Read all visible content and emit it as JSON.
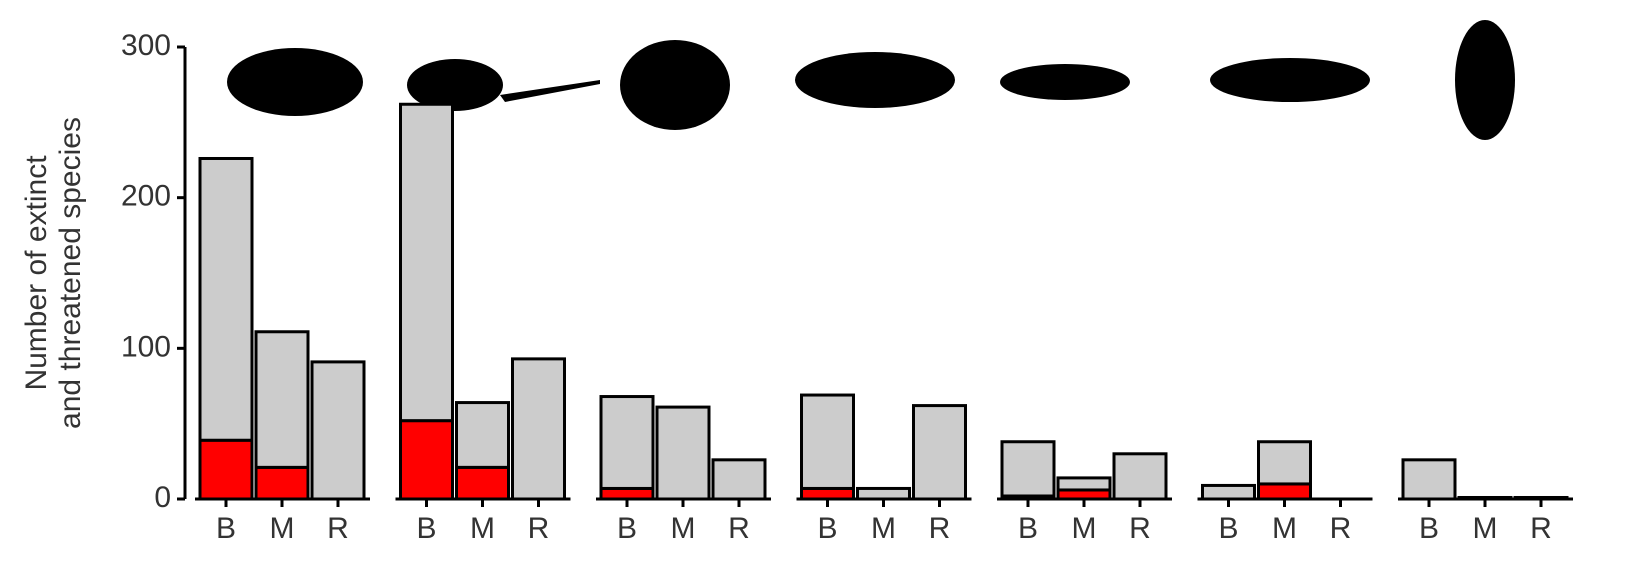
{
  "chart_data": {
    "type": "bar",
    "stacked": true,
    "ylabel": [
      "Number of extinct",
      "and threatened species"
    ],
    "ylim": [
      0,
      300
    ],
    "yticks": [
      0,
      100,
      200,
      300
    ],
    "grid": false,
    "panels": [
      {
        "categories": [
          "B",
          "M",
          "R"
        ],
        "series": [
          {
            "color": "#ff0000",
            "values": [
              39,
              21,
              0
            ]
          },
          {
            "color": "#cccccc",
            "values": [
              187,
              90,
              91
            ]
          }
        ]
      },
      {
        "categories": [
          "B",
          "M",
          "R"
        ],
        "series": [
          {
            "color": "#ff0000",
            "values": [
              52,
              21,
              0
            ]
          },
          {
            "color": "#cccccc",
            "values": [
              210,
              43,
              93
            ]
          }
        ]
      },
      {
        "categories": [
          "B",
          "M",
          "R"
        ],
        "series": [
          {
            "color": "#ff0000",
            "values": [
              7,
              0,
              0
            ]
          },
          {
            "color": "#cccccc",
            "values": [
              61,
              61,
              26
            ]
          }
        ]
      },
      {
        "categories": [
          "B",
          "M",
          "R"
        ],
        "series": [
          {
            "color": "#ff0000",
            "values": [
              7,
              0,
              0
            ]
          },
          {
            "color": "#cccccc",
            "values": [
              62,
              7,
              62
            ]
          }
        ]
      },
      {
        "categories": [
          "B",
          "M",
          "R"
        ],
        "series": [
          {
            "color": "#ff0000",
            "values": [
              2,
              6,
              0
            ]
          },
          {
            "color": "#cccccc",
            "values": [
              36,
              8,
              30
            ]
          }
        ]
      },
      {
        "categories": [
          "B",
          "M",
          "R"
        ],
        "series": [
          {
            "color": "#ff0000",
            "values": [
              0,
              10,
              0
            ]
          },
          {
            "color": "#cccccc",
            "values": [
              9,
              28,
              0
            ]
          }
        ]
      },
      {
        "categories": [
          "B",
          "M",
          "R"
        ],
        "series": [
          {
            "color": "#ff0000",
            "values": [
              0,
              0,
              0
            ]
          },
          {
            "color": "#cccccc",
            "values": [
              26,
              1,
              1
            ]
          }
        ]
      }
    ]
  }
}
